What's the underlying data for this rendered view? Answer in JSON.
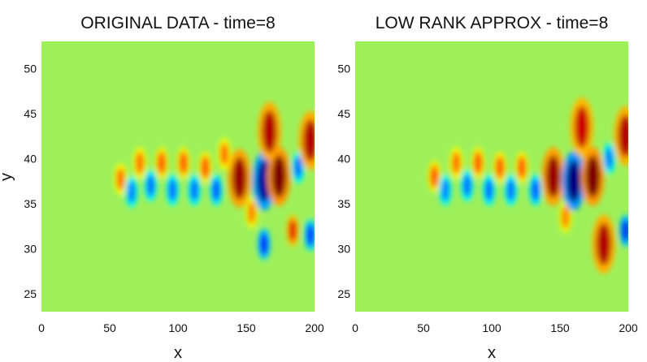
{
  "chart_data": [
    {
      "type": "heatmap",
      "title": "ORIGINAL DATA - time=8",
      "xlabel": "x",
      "ylabel": "y",
      "xlim": [
        0,
        200
      ],
      "ylim": [
        23,
        53
      ],
      "xticks": [
        "0",
        "50",
        "100",
        "150",
        "200"
      ],
      "yticks": [
        "25",
        "30",
        "35",
        "40",
        "45",
        "50"
      ],
      "colormap": "jet",
      "background_color": "#9ef05a",
      "features": [
        {
          "x": 58,
          "y": 37.7,
          "sign": 1,
          "amp": 0.55
        },
        {
          "x": 66,
          "y": 36.3,
          "sign": -1,
          "amp": 0.5
        },
        {
          "x": 72,
          "y": 39.5,
          "sign": 1,
          "amp": 0.55
        },
        {
          "x": 80,
          "y": 37.0,
          "sign": -1,
          "amp": 0.55
        },
        {
          "x": 88,
          "y": 39.5,
          "sign": 1,
          "amp": 0.6
        },
        {
          "x": 96,
          "y": 36.5,
          "sign": -1,
          "amp": 0.55
        },
        {
          "x": 104,
          "y": 39.5,
          "sign": 1,
          "amp": 0.6
        },
        {
          "x": 112,
          "y": 36.5,
          "sign": -1,
          "amp": 0.55
        },
        {
          "x": 120,
          "y": 39.0,
          "sign": 1,
          "amp": 0.6
        },
        {
          "x": 128,
          "y": 36.5,
          "sign": -1,
          "amp": 0.6
        },
        {
          "x": 134,
          "y": 40.5,
          "sign": 1,
          "amp": 0.55
        },
        {
          "x": 145,
          "y": 37.8,
          "sign": 1,
          "amp": 0.95
        },
        {
          "x": 154,
          "y": 34.0,
          "sign": 1,
          "amp": 0.5
        },
        {
          "x": 163,
          "y": 37.5,
          "sign": -1,
          "amp": 0.95
        },
        {
          "x": 163,
          "y": 30.5,
          "sign": -1,
          "amp": 0.75
        },
        {
          "x": 167,
          "y": 43.0,
          "sign": 1,
          "amp": 0.9
        },
        {
          "x": 174,
          "y": 38.0,
          "sign": 1,
          "amp": 1.0
        },
        {
          "x": 184,
          "y": 32.0,
          "sign": 1,
          "amp": 0.8
        },
        {
          "x": 188,
          "y": 39.0,
          "sign": -1,
          "amp": 0.55
        },
        {
          "x": 197,
          "y": 42.0,
          "sign": 1,
          "amp": 0.9
        },
        {
          "x": 197,
          "y": 31.5,
          "sign": -1,
          "amp": 0.7
        }
      ]
    },
    {
      "type": "heatmap",
      "title": "LOW RANK APPROX - time=8",
      "xlabel": "x",
      "ylabel": "",
      "xlim": [
        0,
        200
      ],
      "ylim": [
        23,
        53
      ],
      "xticks": [
        "0",
        "50",
        "100",
        "150",
        "200"
      ],
      "yticks": [
        "25",
        "30",
        "35",
        "40",
        "45",
        "50"
      ],
      "colormap": "jet",
      "background_color": "#9ef05a",
      "features": [
        {
          "x": 58,
          "y": 38.0,
          "sign": 1,
          "amp": 0.6
        },
        {
          "x": 66,
          "y": 36.5,
          "sign": -1,
          "amp": 0.5
        },
        {
          "x": 74,
          "y": 39.5,
          "sign": 1,
          "amp": 0.55
        },
        {
          "x": 82,
          "y": 37.0,
          "sign": -1,
          "amp": 0.55
        },
        {
          "x": 90,
          "y": 39.5,
          "sign": 1,
          "amp": 0.6
        },
        {
          "x": 98,
          "y": 36.5,
          "sign": -1,
          "amp": 0.55
        },
        {
          "x": 106,
          "y": 39.0,
          "sign": 1,
          "amp": 0.6
        },
        {
          "x": 114,
          "y": 36.5,
          "sign": -1,
          "amp": 0.55
        },
        {
          "x": 122,
          "y": 39.0,
          "sign": 1,
          "amp": 0.6
        },
        {
          "x": 132,
          "y": 36.5,
          "sign": -1,
          "amp": 0.6
        },
        {
          "x": 145,
          "y": 38.0,
          "sign": 1,
          "amp": 0.95
        },
        {
          "x": 154,
          "y": 33.5,
          "sign": 1,
          "amp": 0.5
        },
        {
          "x": 160,
          "y": 37.5,
          "sign": -1,
          "amp": 1.0
        },
        {
          "x": 166,
          "y": 43.5,
          "sign": 1,
          "amp": 0.85
        },
        {
          "x": 174,
          "y": 38.0,
          "sign": 1,
          "amp": 1.0
        },
        {
          "x": 182,
          "y": 30.5,
          "sign": 1,
          "amp": 0.9
        },
        {
          "x": 186,
          "y": 40.0,
          "sign": -1,
          "amp": 0.5
        },
        {
          "x": 198,
          "y": 42.5,
          "sign": 1,
          "amp": 0.9
        },
        {
          "x": 198,
          "y": 32.0,
          "sign": -1,
          "amp": 0.8
        }
      ]
    }
  ]
}
